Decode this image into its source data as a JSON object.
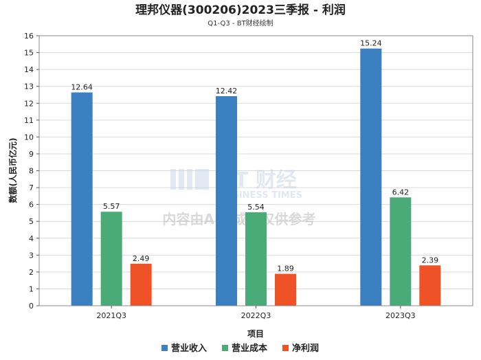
{
  "chart_data": {
    "type": "bar",
    "title": "理邦仪器(300206)2023三季报 - 利润",
    "subtitle": "Q1-Q3 - BT财经绘制",
    "xlabel": "项目",
    "ylabel": "数额(人民币亿元)",
    "ylim": [
      0,
      16
    ],
    "yticks": [
      0,
      1,
      2,
      3,
      4,
      5,
      6,
      7,
      8,
      9,
      10,
      11,
      12,
      13,
      14,
      15,
      16
    ],
    "categories": [
      "2021Q3",
      "2022Q3",
      "2023Q3"
    ],
    "series": [
      {
        "name": "营业收入",
        "color": "#3a80c0",
        "values": [
          12.64,
          12.42,
          15.24
        ]
      },
      {
        "name": "营业成本",
        "color": "#4aaa78",
        "values": [
          5.57,
          5.54,
          6.42
        ]
      },
      {
        "name": "净利润",
        "color": "#ef5226",
        "values": [
          2.49,
          1.89,
          2.39
        ]
      }
    ],
    "legend_position": "bottom-center"
  },
  "watermark": {
    "brand": "BT 财经",
    "brand_en": "BUSINESS TIMES",
    "notice": "内容由AI生成，仅供参考"
  }
}
